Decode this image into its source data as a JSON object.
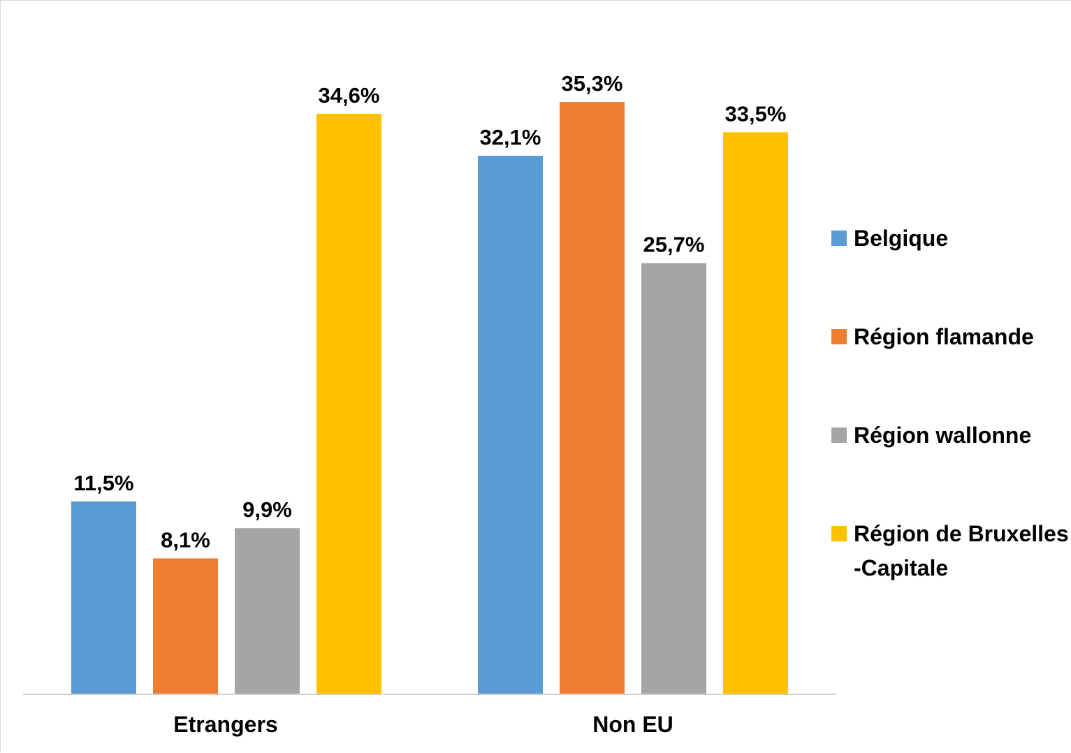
{
  "chart_data": {
    "type": "bar",
    "title": "",
    "xlabel": "",
    "ylabel": "",
    "categories": [
      "Etrangers",
      "Non EU"
    ],
    "ylim": [
      0,
      40
    ],
    "grid": false,
    "legend_position": "right",
    "value_format": "percent-comma-1-decimal",
    "series": [
      {
        "name": "Belgique",
        "label": [
          "Belgique"
        ],
        "color": "#5b9bd5",
        "values": [
          11.5,
          32.1
        ],
        "value_labels": [
          "11,5%",
          "32,1%"
        ]
      },
      {
        "name": "Région flamande",
        "label": [
          "Région flamande"
        ],
        "color": "#ed7d31",
        "values": [
          8.1,
          35.3
        ],
        "value_labels": [
          "8,1%",
          "35,3%"
        ]
      },
      {
        "name": "Région wallonne",
        "label": [
          "Région wallonne"
        ],
        "color": "#a5a5a5",
        "values": [
          9.9,
          25.7
        ],
        "value_labels": [
          "9,9%",
          "25,7%"
        ]
      },
      {
        "name": "Région de Bruxelles-Capitale",
        "label": [
          "Région de Bruxelles",
          "-Capitale"
        ],
        "color": "#ffc000",
        "values": [
          34.6,
          33.5
        ],
        "value_labels": [
          "34,6%",
          "33,5%"
        ]
      }
    ]
  }
}
